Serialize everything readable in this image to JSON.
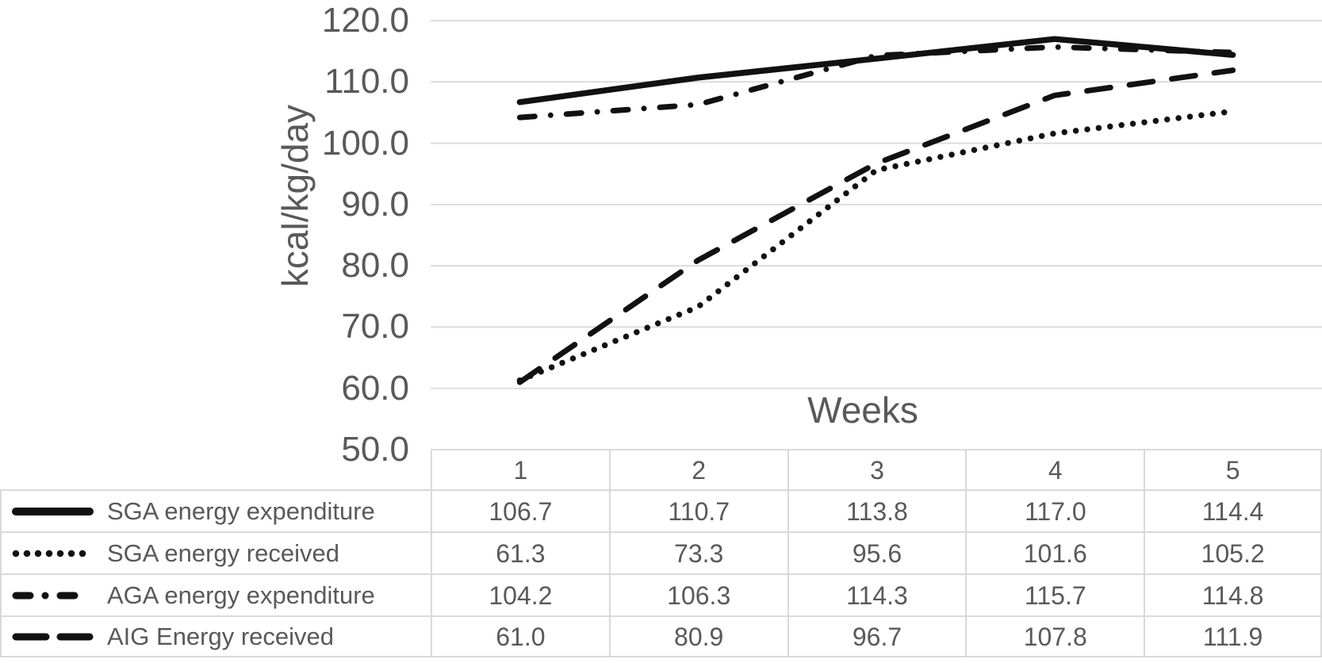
{
  "figure": {
    "background": "#ffffff",
    "text_color": "#595959",
    "line_color": "#111111",
    "grid_color": "#dcdcdc",
    "table_border_color": "#d9d9d9"
  },
  "chart_data": {
    "type": "line",
    "title": "",
    "xlabel": "Weeks",
    "ylabel": "kcal/kg/day",
    "x": [
      1,
      2,
      3,
      4,
      5
    ],
    "x_tick_labels": [
      "1",
      "2",
      "3",
      "4",
      "5"
    ],
    "ylim": [
      50,
      120
    ],
    "ytick_step": 10,
    "yticks": [
      120,
      110,
      100,
      90,
      80,
      70,
      60,
      50
    ],
    "ytick_labels": [
      "120.0",
      "110.0",
      "100.0",
      "90.0",
      "80.0",
      "70.0",
      "60.0",
      "50.0"
    ],
    "grid": "horizontal",
    "legend_position": "data-table-left-column",
    "series": [
      {
        "name": "SGA energy expenditure",
        "line_style": "solid",
        "values": [
          106.7,
          110.7,
          113.8,
          117.0,
          114.4
        ]
      },
      {
        "name": "SGA energy received",
        "line_style": "dotted",
        "values": [
          61.3,
          73.3,
          95.6,
          101.6,
          105.2
        ]
      },
      {
        "name": "AGA energy expenditure",
        "line_style": "dash-dot",
        "values": [
          104.2,
          106.3,
          114.3,
          115.7,
          114.8
        ]
      },
      {
        "name": "AIG Energy received",
        "line_style": "dashed",
        "values": [
          61.0,
          80.9,
          96.7,
          107.8,
          111.9
        ]
      }
    ]
  }
}
